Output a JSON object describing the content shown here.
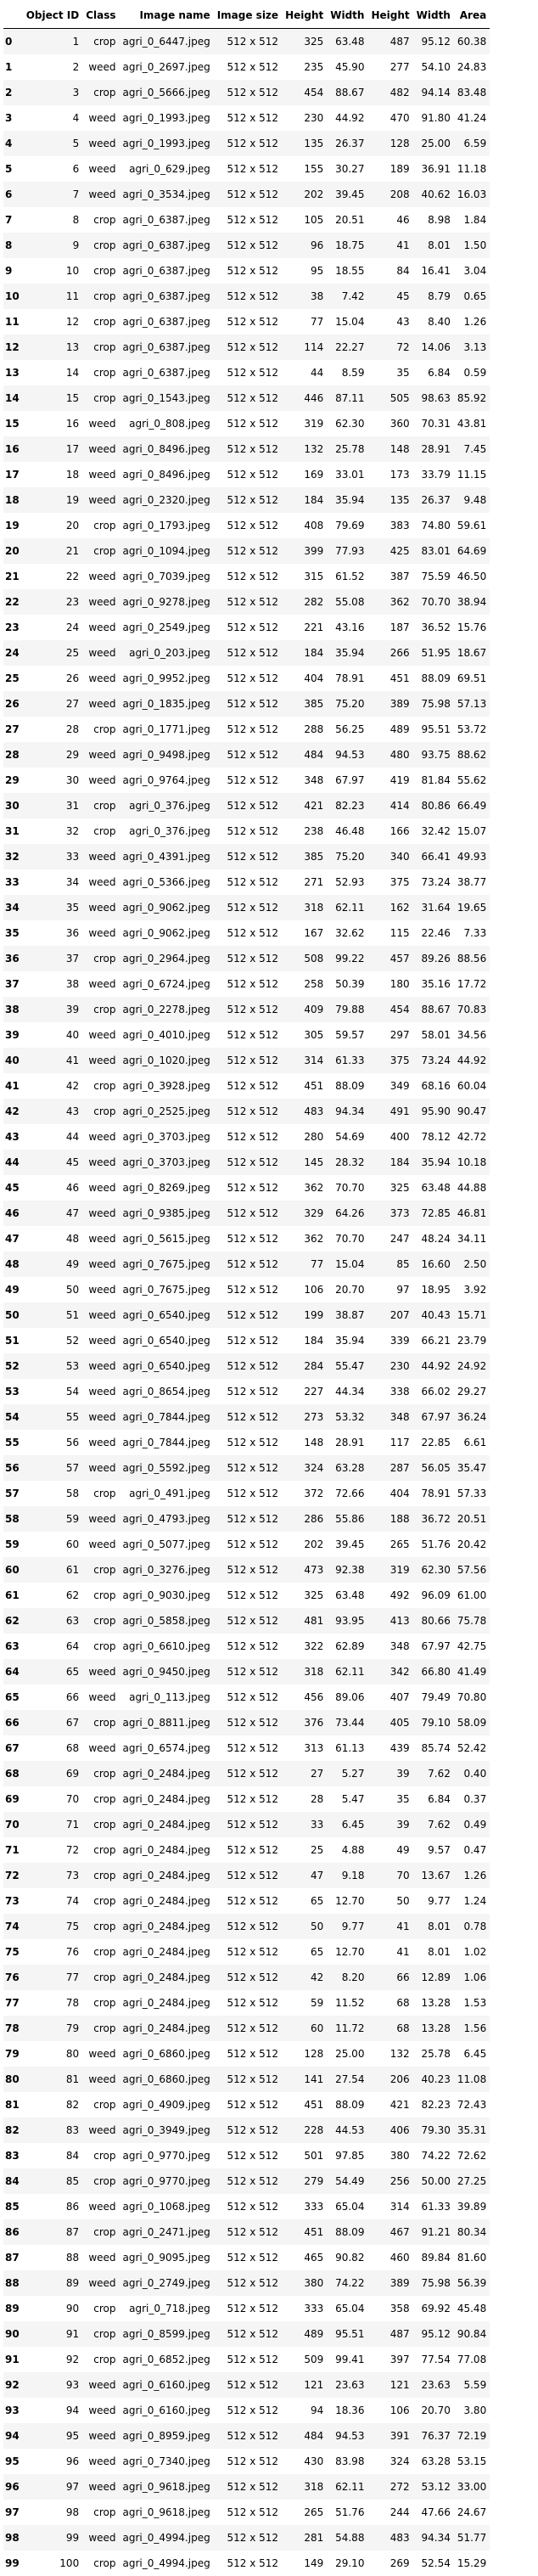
{
  "table": {
    "columns": [
      "",
      "Object ID",
      "Class",
      "Image name",
      "Image size",
      "Height",
      "Width",
      "Height",
      "Width",
      "Area"
    ],
    "rows": [
      [
        "0",
        "1",
        "crop",
        "agri_0_6447.jpeg",
        "512 x 512",
        "325",
        "63.48",
        "487",
        "95.12",
        "60.38"
      ],
      [
        "1",
        "2",
        "weed",
        "agri_0_2697.jpeg",
        "512 x 512",
        "235",
        "45.90",
        "277",
        "54.10",
        "24.83"
      ],
      [
        "2",
        "3",
        "crop",
        "agri_0_5666.jpeg",
        "512 x 512",
        "454",
        "88.67",
        "482",
        "94.14",
        "83.48"
      ],
      [
        "3",
        "4",
        "weed",
        "agri_0_1993.jpeg",
        "512 x 512",
        "230",
        "44.92",
        "470",
        "91.80",
        "41.24"
      ],
      [
        "4",
        "5",
        "weed",
        "agri_0_1993.jpeg",
        "512 x 512",
        "135",
        "26.37",
        "128",
        "25.00",
        "6.59"
      ],
      [
        "5",
        "6",
        "weed",
        "agri_0_629.jpeg",
        "512 x 512",
        "155",
        "30.27",
        "189",
        "36.91",
        "11.18"
      ],
      [
        "6",
        "7",
        "weed",
        "agri_0_3534.jpeg",
        "512 x 512",
        "202",
        "39.45",
        "208",
        "40.62",
        "16.03"
      ],
      [
        "7",
        "8",
        "crop",
        "agri_0_6387.jpeg",
        "512 x 512",
        "105",
        "20.51",
        "46",
        "8.98",
        "1.84"
      ],
      [
        "8",
        "9",
        "crop",
        "agri_0_6387.jpeg",
        "512 x 512",
        "96",
        "18.75",
        "41",
        "8.01",
        "1.50"
      ],
      [
        "9",
        "10",
        "crop",
        "agri_0_6387.jpeg",
        "512 x 512",
        "95",
        "18.55",
        "84",
        "16.41",
        "3.04"
      ],
      [
        "10",
        "11",
        "crop",
        "agri_0_6387.jpeg",
        "512 x 512",
        "38",
        "7.42",
        "45",
        "8.79",
        "0.65"
      ],
      [
        "11",
        "12",
        "crop",
        "agri_0_6387.jpeg",
        "512 x 512",
        "77",
        "15.04",
        "43",
        "8.40",
        "1.26"
      ],
      [
        "12",
        "13",
        "crop",
        "agri_0_6387.jpeg",
        "512 x 512",
        "114",
        "22.27",
        "72",
        "14.06",
        "3.13"
      ],
      [
        "13",
        "14",
        "crop",
        "agri_0_6387.jpeg",
        "512 x 512",
        "44",
        "8.59",
        "35",
        "6.84",
        "0.59"
      ],
      [
        "14",
        "15",
        "crop",
        "agri_0_1543.jpeg",
        "512 x 512",
        "446",
        "87.11",
        "505",
        "98.63",
        "85.92"
      ],
      [
        "15",
        "16",
        "weed",
        "agri_0_808.jpeg",
        "512 x 512",
        "319",
        "62.30",
        "360",
        "70.31",
        "43.81"
      ],
      [
        "16",
        "17",
        "weed",
        "agri_0_8496.jpeg",
        "512 x 512",
        "132",
        "25.78",
        "148",
        "28.91",
        "7.45"
      ],
      [
        "17",
        "18",
        "weed",
        "agri_0_8496.jpeg",
        "512 x 512",
        "169",
        "33.01",
        "173",
        "33.79",
        "11.15"
      ],
      [
        "18",
        "19",
        "weed",
        "agri_0_2320.jpeg",
        "512 x 512",
        "184",
        "35.94",
        "135",
        "26.37",
        "9.48"
      ],
      [
        "19",
        "20",
        "crop",
        "agri_0_1793.jpeg",
        "512 x 512",
        "408",
        "79.69",
        "383",
        "74.80",
        "59.61"
      ],
      [
        "20",
        "21",
        "crop",
        "agri_0_1094.jpeg",
        "512 x 512",
        "399",
        "77.93",
        "425",
        "83.01",
        "64.69"
      ],
      [
        "21",
        "22",
        "weed",
        "agri_0_7039.jpeg",
        "512 x 512",
        "315",
        "61.52",
        "387",
        "75.59",
        "46.50"
      ],
      [
        "22",
        "23",
        "weed",
        "agri_0_9278.jpeg",
        "512 x 512",
        "282",
        "55.08",
        "362",
        "70.70",
        "38.94"
      ],
      [
        "23",
        "24",
        "weed",
        "agri_0_2549.jpeg",
        "512 x 512",
        "221",
        "43.16",
        "187",
        "36.52",
        "15.76"
      ],
      [
        "24",
        "25",
        "weed",
        "agri_0_203.jpeg",
        "512 x 512",
        "184",
        "35.94",
        "266",
        "51.95",
        "18.67"
      ],
      [
        "25",
        "26",
        "weed",
        "agri_0_9952.jpeg",
        "512 x 512",
        "404",
        "78.91",
        "451",
        "88.09",
        "69.51"
      ],
      [
        "26",
        "27",
        "weed",
        "agri_0_1835.jpeg",
        "512 x 512",
        "385",
        "75.20",
        "389",
        "75.98",
        "57.13"
      ],
      [
        "27",
        "28",
        "crop",
        "agri_0_1771.jpeg",
        "512 x 512",
        "288",
        "56.25",
        "489",
        "95.51",
        "53.72"
      ],
      [
        "28",
        "29",
        "weed",
        "agri_0_9498.jpeg",
        "512 x 512",
        "484",
        "94.53",
        "480",
        "93.75",
        "88.62"
      ],
      [
        "29",
        "30",
        "weed",
        "agri_0_9764.jpeg",
        "512 x 512",
        "348",
        "67.97",
        "419",
        "81.84",
        "55.62"
      ],
      [
        "30",
        "31",
        "crop",
        "agri_0_376.jpeg",
        "512 x 512",
        "421",
        "82.23",
        "414",
        "80.86",
        "66.49"
      ],
      [
        "31",
        "32",
        "crop",
        "agri_0_376.jpeg",
        "512 x 512",
        "238",
        "46.48",
        "166",
        "32.42",
        "15.07"
      ],
      [
        "32",
        "33",
        "weed",
        "agri_0_4391.jpeg",
        "512 x 512",
        "385",
        "75.20",
        "340",
        "66.41",
        "49.93"
      ],
      [
        "33",
        "34",
        "weed",
        "agri_0_5366.jpeg",
        "512 x 512",
        "271",
        "52.93",
        "375",
        "73.24",
        "38.77"
      ],
      [
        "34",
        "35",
        "weed",
        "agri_0_9062.jpeg",
        "512 x 512",
        "318",
        "62.11",
        "162",
        "31.64",
        "19.65"
      ],
      [
        "35",
        "36",
        "weed",
        "agri_0_9062.jpeg",
        "512 x 512",
        "167",
        "32.62",
        "115",
        "22.46",
        "7.33"
      ],
      [
        "36",
        "37",
        "crop",
        "agri_0_2964.jpeg",
        "512 x 512",
        "508",
        "99.22",
        "457",
        "89.26",
        "88.56"
      ],
      [
        "37",
        "38",
        "weed",
        "agri_0_6724.jpeg",
        "512 x 512",
        "258",
        "50.39",
        "180",
        "35.16",
        "17.72"
      ],
      [
        "38",
        "39",
        "crop",
        "agri_0_2278.jpeg",
        "512 x 512",
        "409",
        "79.88",
        "454",
        "88.67",
        "70.83"
      ],
      [
        "39",
        "40",
        "weed",
        "agri_0_4010.jpeg",
        "512 x 512",
        "305",
        "59.57",
        "297",
        "58.01",
        "34.56"
      ],
      [
        "40",
        "41",
        "weed",
        "agri_0_1020.jpeg",
        "512 x 512",
        "314",
        "61.33",
        "375",
        "73.24",
        "44.92"
      ],
      [
        "41",
        "42",
        "crop",
        "agri_0_3928.jpeg",
        "512 x 512",
        "451",
        "88.09",
        "349",
        "68.16",
        "60.04"
      ],
      [
        "42",
        "43",
        "crop",
        "agri_0_2525.jpeg",
        "512 x 512",
        "483",
        "94.34",
        "491",
        "95.90",
        "90.47"
      ],
      [
        "43",
        "44",
        "weed",
        "agri_0_3703.jpeg",
        "512 x 512",
        "280",
        "54.69",
        "400",
        "78.12",
        "42.72"
      ],
      [
        "44",
        "45",
        "weed",
        "agri_0_3703.jpeg",
        "512 x 512",
        "145",
        "28.32",
        "184",
        "35.94",
        "10.18"
      ],
      [
        "45",
        "46",
        "weed",
        "agri_0_8269.jpeg",
        "512 x 512",
        "362",
        "70.70",
        "325",
        "63.48",
        "44.88"
      ],
      [
        "46",
        "47",
        "weed",
        "agri_0_9385.jpeg",
        "512 x 512",
        "329",
        "64.26",
        "373",
        "72.85",
        "46.81"
      ],
      [
        "47",
        "48",
        "weed",
        "agri_0_5615.jpeg",
        "512 x 512",
        "362",
        "70.70",
        "247",
        "48.24",
        "34.11"
      ],
      [
        "48",
        "49",
        "weed",
        "agri_0_7675.jpeg",
        "512 x 512",
        "77",
        "15.04",
        "85",
        "16.60",
        "2.50"
      ],
      [
        "49",
        "50",
        "weed",
        "agri_0_7675.jpeg",
        "512 x 512",
        "106",
        "20.70",
        "97",
        "18.95",
        "3.92"
      ],
      [
        "50",
        "51",
        "weed",
        "agri_0_6540.jpeg",
        "512 x 512",
        "199",
        "38.87",
        "207",
        "40.43",
        "15.71"
      ],
      [
        "51",
        "52",
        "weed",
        "agri_0_6540.jpeg",
        "512 x 512",
        "184",
        "35.94",
        "339",
        "66.21",
        "23.79"
      ],
      [
        "52",
        "53",
        "weed",
        "agri_0_6540.jpeg",
        "512 x 512",
        "284",
        "55.47",
        "230",
        "44.92",
        "24.92"
      ],
      [
        "53",
        "54",
        "weed",
        "agri_0_8654.jpeg",
        "512 x 512",
        "227",
        "44.34",
        "338",
        "66.02",
        "29.27"
      ],
      [
        "54",
        "55",
        "weed",
        "agri_0_7844.jpeg",
        "512 x 512",
        "273",
        "53.32",
        "348",
        "67.97",
        "36.24"
      ],
      [
        "55",
        "56",
        "weed",
        "agri_0_7844.jpeg",
        "512 x 512",
        "148",
        "28.91",
        "117",
        "22.85",
        "6.61"
      ],
      [
        "56",
        "57",
        "weed",
        "agri_0_5592.jpeg",
        "512 x 512",
        "324",
        "63.28",
        "287",
        "56.05",
        "35.47"
      ],
      [
        "57",
        "58",
        "crop",
        "agri_0_491.jpeg",
        "512 x 512",
        "372",
        "72.66",
        "404",
        "78.91",
        "57.33"
      ],
      [
        "58",
        "59",
        "weed",
        "agri_0_4793.jpeg",
        "512 x 512",
        "286",
        "55.86",
        "188",
        "36.72",
        "20.51"
      ],
      [
        "59",
        "60",
        "weed",
        "agri_0_5077.jpeg",
        "512 x 512",
        "202",
        "39.45",
        "265",
        "51.76",
        "20.42"
      ],
      [
        "60",
        "61",
        "crop",
        "agri_0_3276.jpeg",
        "512 x 512",
        "473",
        "92.38",
        "319",
        "62.30",
        "57.56"
      ],
      [
        "61",
        "62",
        "crop",
        "agri_0_9030.jpeg",
        "512 x 512",
        "325",
        "63.48",
        "492",
        "96.09",
        "61.00"
      ],
      [
        "62",
        "63",
        "crop",
        "agri_0_5858.jpeg",
        "512 x 512",
        "481",
        "93.95",
        "413",
        "80.66",
        "75.78"
      ],
      [
        "63",
        "64",
        "crop",
        "agri_0_6610.jpeg",
        "512 x 512",
        "322",
        "62.89",
        "348",
        "67.97",
        "42.75"
      ],
      [
        "64",
        "65",
        "weed",
        "agri_0_9450.jpeg",
        "512 x 512",
        "318",
        "62.11",
        "342",
        "66.80",
        "41.49"
      ],
      [
        "65",
        "66",
        "weed",
        "agri_0_113.jpeg",
        "512 x 512",
        "456",
        "89.06",
        "407",
        "79.49",
        "70.80"
      ],
      [
        "66",
        "67",
        "crop",
        "agri_0_8811.jpeg",
        "512 x 512",
        "376",
        "73.44",
        "405",
        "79.10",
        "58.09"
      ],
      [
        "67",
        "68",
        "weed",
        "agri_0_6574.jpeg",
        "512 x 512",
        "313",
        "61.13",
        "439",
        "85.74",
        "52.42"
      ],
      [
        "68",
        "69",
        "crop",
        "agri_0_2484.jpeg",
        "512 x 512",
        "27",
        "5.27",
        "39",
        "7.62",
        "0.40"
      ],
      [
        "69",
        "70",
        "crop",
        "agri_0_2484.jpeg",
        "512 x 512",
        "28",
        "5.47",
        "35",
        "6.84",
        "0.37"
      ],
      [
        "70",
        "71",
        "crop",
        "agri_0_2484.jpeg",
        "512 x 512",
        "33",
        "6.45",
        "39",
        "7.62",
        "0.49"
      ],
      [
        "71",
        "72",
        "crop",
        "agri_0_2484.jpeg",
        "512 x 512",
        "25",
        "4.88",
        "49",
        "9.57",
        "0.47"
      ],
      [
        "72",
        "73",
        "crop",
        "agri_0_2484.jpeg",
        "512 x 512",
        "47",
        "9.18",
        "70",
        "13.67",
        "1.26"
      ],
      [
        "73",
        "74",
        "crop",
        "agri_0_2484.jpeg",
        "512 x 512",
        "65",
        "12.70",
        "50",
        "9.77",
        "1.24"
      ],
      [
        "74",
        "75",
        "crop",
        "agri_0_2484.jpeg",
        "512 x 512",
        "50",
        "9.77",
        "41",
        "8.01",
        "0.78"
      ],
      [
        "75",
        "76",
        "crop",
        "agri_0_2484.jpeg",
        "512 x 512",
        "65",
        "12.70",
        "41",
        "8.01",
        "1.02"
      ],
      [
        "76",
        "77",
        "crop",
        "agri_0_2484.jpeg",
        "512 x 512",
        "42",
        "8.20",
        "66",
        "12.89",
        "1.06"
      ],
      [
        "77",
        "78",
        "crop",
        "agri_0_2484.jpeg",
        "512 x 512",
        "59",
        "11.52",
        "68",
        "13.28",
        "1.53"
      ],
      [
        "78",
        "79",
        "crop",
        "agri_0_2484.jpeg",
        "512 x 512",
        "60",
        "11.72",
        "68",
        "13.28",
        "1.56"
      ],
      [
        "79",
        "80",
        "weed",
        "agri_0_6860.jpeg",
        "512 x 512",
        "128",
        "25.00",
        "132",
        "25.78",
        "6.45"
      ],
      [
        "80",
        "81",
        "weed",
        "agri_0_6860.jpeg",
        "512 x 512",
        "141",
        "27.54",
        "206",
        "40.23",
        "11.08"
      ],
      [
        "81",
        "82",
        "crop",
        "agri_0_4909.jpeg",
        "512 x 512",
        "451",
        "88.09",
        "421",
        "82.23",
        "72.43"
      ],
      [
        "82",
        "83",
        "weed",
        "agri_0_3949.jpeg",
        "512 x 512",
        "228",
        "44.53",
        "406",
        "79.30",
        "35.31"
      ],
      [
        "83",
        "84",
        "crop",
        "agri_0_9770.jpeg",
        "512 x 512",
        "501",
        "97.85",
        "380",
        "74.22",
        "72.62"
      ],
      [
        "84",
        "85",
        "crop",
        "agri_0_9770.jpeg",
        "512 x 512",
        "279",
        "54.49",
        "256",
        "50.00",
        "27.25"
      ],
      [
        "85",
        "86",
        "weed",
        "agri_0_1068.jpeg",
        "512 x 512",
        "333",
        "65.04",
        "314",
        "61.33",
        "39.89"
      ],
      [
        "86",
        "87",
        "crop",
        "agri_0_2471.jpeg",
        "512 x 512",
        "451",
        "88.09",
        "467",
        "91.21",
        "80.34"
      ],
      [
        "87",
        "88",
        "weed",
        "agri_0_9095.jpeg",
        "512 x 512",
        "465",
        "90.82",
        "460",
        "89.84",
        "81.60"
      ],
      [
        "88",
        "89",
        "weed",
        "agri_0_2749.jpeg",
        "512 x 512",
        "380",
        "74.22",
        "389",
        "75.98",
        "56.39"
      ],
      [
        "89",
        "90",
        "crop",
        "agri_0_718.jpeg",
        "512 x 512",
        "333",
        "65.04",
        "358",
        "69.92",
        "45.48"
      ],
      [
        "90",
        "91",
        "crop",
        "agri_0_8599.jpeg",
        "512 x 512",
        "489",
        "95.51",
        "487",
        "95.12",
        "90.84"
      ],
      [
        "91",
        "92",
        "crop",
        "agri_0_6852.jpeg",
        "512 x 512",
        "509",
        "99.41",
        "397",
        "77.54",
        "77.08"
      ],
      [
        "92",
        "93",
        "weed",
        "agri_0_6160.jpeg",
        "512 x 512",
        "121",
        "23.63",
        "121",
        "23.63",
        "5.59"
      ],
      [
        "93",
        "94",
        "weed",
        "agri_0_6160.jpeg",
        "512 x 512",
        "94",
        "18.36",
        "106",
        "20.70",
        "3.80"
      ],
      [
        "94",
        "95",
        "weed",
        "agri_0_8959.jpeg",
        "512 x 512",
        "484",
        "94.53",
        "391",
        "76.37",
        "72.19"
      ],
      [
        "95",
        "96",
        "weed",
        "agri_0_7340.jpeg",
        "512 x 512",
        "430",
        "83.98",
        "324",
        "63.28",
        "53.15"
      ],
      [
        "96",
        "97",
        "weed",
        "agri_0_9618.jpeg",
        "512 x 512",
        "318",
        "62.11",
        "272",
        "53.12",
        "33.00"
      ],
      [
        "97",
        "98",
        "crop",
        "agri_0_9618.jpeg",
        "512 x 512",
        "265",
        "51.76",
        "244",
        "47.66",
        "24.67"
      ],
      [
        "98",
        "99",
        "weed",
        "agri_0_4994.jpeg",
        "512 x 512",
        "281",
        "54.88",
        "483",
        "94.34",
        "51.77"
      ],
      [
        "99",
        "100",
        "crop",
        "agri_0_4994.jpeg",
        "512 x 512",
        "149",
        "29.10",
        "269",
        "52.54",
        "15.29"
      ]
    ]
  }
}
